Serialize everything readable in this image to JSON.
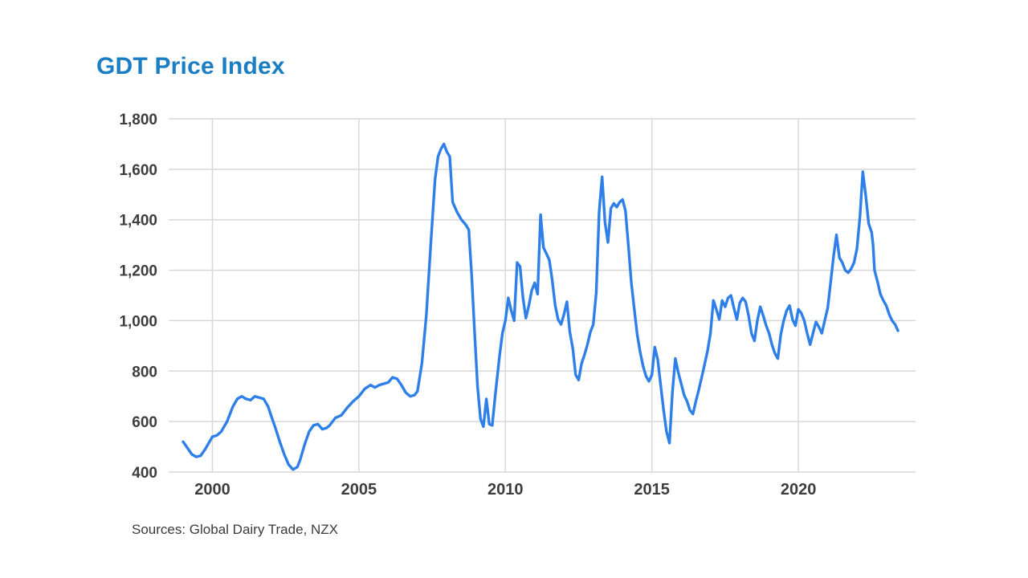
{
  "title": "GDT Price Index",
  "source": "Sources: Global Dairy Trade, NZX",
  "colors": {
    "title": "#1b7ec4",
    "line": "#2e80e8",
    "grid": "#d8d8d8",
    "tick": "#3d3d3d"
  },
  "chart_data": {
    "type": "line",
    "title": "GDT Price Index",
    "xlabel": "",
    "ylabel": "",
    "grid": true,
    "legend": "none",
    "xlim": [
      1999,
      2024
    ],
    "ylim": [
      400,
      1800
    ],
    "x_ticks": [
      2000,
      2005,
      2010,
      2015,
      2020
    ],
    "x_tick_labels": [
      "2000",
      "2005",
      "2010",
      "2015",
      "2020"
    ],
    "y_ticks": [
      400,
      600,
      800,
      1000,
      1200,
      1400,
      1600,
      1800
    ],
    "y_tick_labels": [
      "400",
      "600",
      "800",
      "1,000",
      "1,200",
      "1,400",
      "1,600",
      "1,800"
    ],
    "series": [
      {
        "name": "GDT Price Index",
        "points": [
          [
            1999.0,
            520
          ],
          [
            1999.15,
            495
          ],
          [
            1999.3,
            470
          ],
          [
            1999.45,
            460
          ],
          [
            1999.6,
            465
          ],
          [
            1999.75,
            490
          ],
          [
            1999.9,
            520
          ],
          [
            2000.0,
            540
          ],
          [
            2000.15,
            545
          ],
          [
            2000.3,
            560
          ],
          [
            2000.5,
            600
          ],
          [
            2000.7,
            660
          ],
          [
            2000.85,
            690
          ],
          [
            2001.0,
            700
          ],
          [
            2001.15,
            690
          ],
          [
            2001.3,
            685
          ],
          [
            2001.45,
            700
          ],
          [
            2001.6,
            695
          ],
          [
            2001.75,
            690
          ],
          [
            2001.9,
            660
          ],
          [
            2002.0,
            625
          ],
          [
            2002.15,
            575
          ],
          [
            2002.3,
            520
          ],
          [
            2002.45,
            470
          ],
          [
            2002.6,
            430
          ],
          [
            2002.75,
            410
          ],
          [
            2002.9,
            420
          ],
          [
            2003.0,
            450
          ],
          [
            2003.15,
            510
          ],
          [
            2003.3,
            560
          ],
          [
            2003.45,
            585
          ],
          [
            2003.6,
            590
          ],
          [
            2003.75,
            570
          ],
          [
            2003.9,
            575
          ],
          [
            2004.0,
            585
          ],
          [
            2004.2,
            615
          ],
          [
            2004.4,
            625
          ],
          [
            2004.6,
            655
          ],
          [
            2004.8,
            680
          ],
          [
            2005.0,
            700
          ],
          [
            2005.2,
            730
          ],
          [
            2005.4,
            745
          ],
          [
            2005.55,
            735
          ],
          [
            2005.7,
            745
          ],
          [
            2005.85,
            750
          ],
          [
            2006.0,
            755
          ],
          [
            2006.15,
            775
          ],
          [
            2006.3,
            770
          ],
          [
            2006.45,
            745
          ],
          [
            2006.6,
            715
          ],
          [
            2006.75,
            700
          ],
          [
            2006.9,
            705
          ],
          [
            2007.0,
            720
          ],
          [
            2007.15,
            830
          ],
          [
            2007.3,
            1020
          ],
          [
            2007.45,
            1300
          ],
          [
            2007.6,
            1560
          ],
          [
            2007.7,
            1650
          ],
          [
            2007.8,
            1680
          ],
          [
            2007.9,
            1700
          ],
          [
            2008.0,
            1670
          ],
          [
            2008.1,
            1650
          ],
          [
            2008.2,
            1470
          ],
          [
            2008.35,
            1430
          ],
          [
            2008.5,
            1400
          ],
          [
            2008.65,
            1380
          ],
          [
            2008.75,
            1360
          ],
          [
            2008.85,
            1180
          ],
          [
            2008.95,
            950
          ],
          [
            2009.05,
            740
          ],
          [
            2009.15,
            610
          ],
          [
            2009.25,
            580
          ],
          [
            2009.35,
            690
          ],
          [
            2009.45,
            590
          ],
          [
            2009.55,
            585
          ],
          [
            2009.65,
            700
          ],
          [
            2009.8,
            860
          ],
          [
            2009.9,
            950
          ],
          [
            2010.0,
            1000
          ],
          [
            2010.1,
            1090
          ],
          [
            2010.2,
            1040
          ],
          [
            2010.3,
            1000
          ],
          [
            2010.4,
            1230
          ],
          [
            2010.5,
            1215
          ],
          [
            2010.6,
            1090
          ],
          [
            2010.7,
            1010
          ],
          [
            2010.8,
            1060
          ],
          [
            2010.9,
            1120
          ],
          [
            2011.0,
            1150
          ],
          [
            2011.1,
            1105
          ],
          [
            2011.2,
            1420
          ],
          [
            2011.3,
            1290
          ],
          [
            2011.4,
            1265
          ],
          [
            2011.5,
            1240
          ],
          [
            2011.6,
            1160
          ],
          [
            2011.7,
            1060
          ],
          [
            2011.8,
            1005
          ],
          [
            2011.9,
            985
          ],
          [
            2012.0,
            1025
          ],
          [
            2012.1,
            1075
          ],
          [
            2012.2,
            955
          ],
          [
            2012.3,
            890
          ],
          [
            2012.4,
            785
          ],
          [
            2012.5,
            765
          ],
          [
            2012.6,
            830
          ],
          [
            2012.7,
            865
          ],
          [
            2012.8,
            905
          ],
          [
            2012.9,
            955
          ],
          [
            2013.0,
            985
          ],
          [
            2013.1,
            1110
          ],
          [
            2013.2,
            1430
          ],
          [
            2013.3,
            1570
          ],
          [
            2013.4,
            1390
          ],
          [
            2013.5,
            1310
          ],
          [
            2013.6,
            1445
          ],
          [
            2013.7,
            1465
          ],
          [
            2013.8,
            1450
          ],
          [
            2013.9,
            1470
          ],
          [
            2014.0,
            1480
          ],
          [
            2014.1,
            1435
          ],
          [
            2014.2,
            1295
          ],
          [
            2014.3,
            1150
          ],
          [
            2014.4,
            1045
          ],
          [
            2014.5,
            945
          ],
          [
            2014.6,
            875
          ],
          [
            2014.7,
            820
          ],
          [
            2014.8,
            780
          ],
          [
            2014.9,
            760
          ],
          [
            2015.0,
            785
          ],
          [
            2015.1,
            895
          ],
          [
            2015.2,
            845
          ],
          [
            2015.3,
            745
          ],
          [
            2015.4,
            645
          ],
          [
            2015.5,
            560
          ],
          [
            2015.6,
            515
          ],
          [
            2015.7,
            715
          ],
          [
            2015.8,
            850
          ],
          [
            2015.9,
            795
          ],
          [
            2016.0,
            750
          ],
          [
            2016.1,
            705
          ],
          [
            2016.2,
            680
          ],
          [
            2016.3,
            645
          ],
          [
            2016.4,
            630
          ],
          [
            2016.5,
            680
          ],
          [
            2016.6,
            725
          ],
          [
            2016.75,
            800
          ],
          [
            2016.9,
            880
          ],
          [
            2017.0,
            950
          ],
          [
            2017.1,
            1080
          ],
          [
            2017.2,
            1045
          ],
          [
            2017.3,
            1005
          ],
          [
            2017.4,
            1080
          ],
          [
            2017.5,
            1055
          ],
          [
            2017.6,
            1090
          ],
          [
            2017.7,
            1100
          ],
          [
            2017.8,
            1050
          ],
          [
            2017.9,
            1005
          ],
          [
            2018.0,
            1070
          ],
          [
            2018.1,
            1090
          ],
          [
            2018.2,
            1075
          ],
          [
            2018.3,
            1020
          ],
          [
            2018.4,
            950
          ],
          [
            2018.5,
            920
          ],
          [
            2018.6,
            1000
          ],
          [
            2018.7,
            1055
          ],
          [
            2018.8,
            1020
          ],
          [
            2018.9,
            980
          ],
          [
            2019.0,
            950
          ],
          [
            2019.1,
            905
          ],
          [
            2019.2,
            870
          ],
          [
            2019.3,
            850
          ],
          [
            2019.4,
            945
          ],
          [
            2019.5,
            1000
          ],
          [
            2019.6,
            1040
          ],
          [
            2019.7,
            1060
          ],
          [
            2019.8,
            1005
          ],
          [
            2019.9,
            980
          ],
          [
            2020.0,
            1045
          ],
          [
            2020.1,
            1030
          ],
          [
            2020.2,
            1000
          ],
          [
            2020.3,
            950
          ],
          [
            2020.4,
            905
          ],
          [
            2020.5,
            950
          ],
          [
            2020.6,
            995
          ],
          [
            2020.7,
            975
          ],
          [
            2020.8,
            950
          ],
          [
            2020.9,
            1000
          ],
          [
            2021.0,
            1050
          ],
          [
            2021.1,
            1150
          ],
          [
            2021.2,
            1255
          ],
          [
            2021.3,
            1340
          ],
          [
            2021.4,
            1250
          ],
          [
            2021.5,
            1230
          ],
          [
            2021.6,
            1200
          ],
          [
            2021.7,
            1190
          ],
          [
            2021.8,
            1205
          ],
          [
            2021.9,
            1230
          ],
          [
            2022.0,
            1285
          ],
          [
            2022.1,
            1410
          ],
          [
            2022.2,
            1590
          ],
          [
            2022.3,
            1495
          ],
          [
            2022.4,
            1385
          ],
          [
            2022.5,
            1350
          ],
          [
            2022.55,
            1300
          ],
          [
            2022.6,
            1200
          ],
          [
            2022.7,
            1155
          ],
          [
            2022.8,
            1105
          ],
          [
            2022.9,
            1080
          ],
          [
            2023.0,
            1060
          ],
          [
            2023.1,
            1025
          ],
          [
            2023.2,
            1000
          ],
          [
            2023.3,
            985
          ],
          [
            2023.4,
            960
          ]
        ]
      }
    ]
  }
}
